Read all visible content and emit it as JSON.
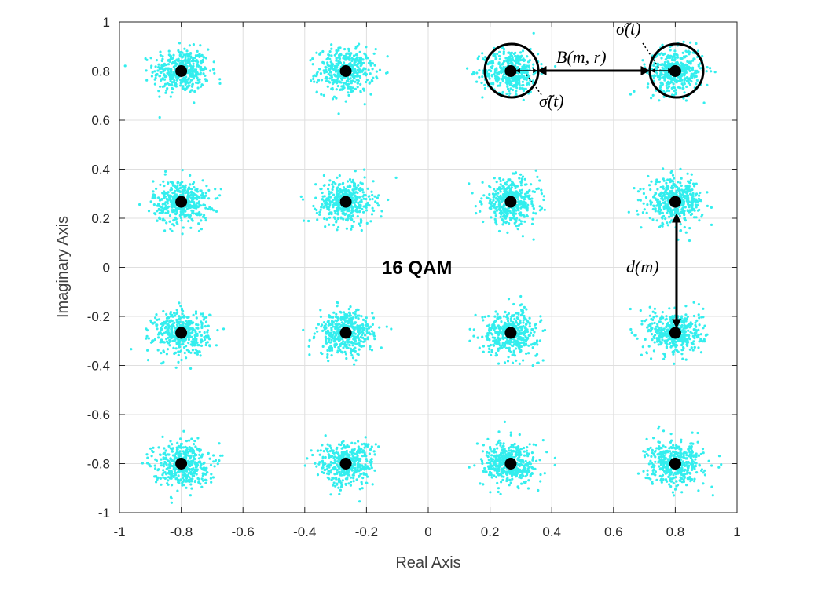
{
  "chart_data": {
    "type": "scatter",
    "title": "16 QAM",
    "xlabel": "Real Axis",
    "ylabel": "Imaginary Axis",
    "xlim": [
      -1,
      1
    ],
    "ylim": [
      -1,
      1
    ],
    "xticks": [
      "-1",
      "-0.8",
      "-0.6",
      "-0.4",
      "-0.2",
      "0",
      "0.2",
      "0.4",
      "0.6",
      "0.8",
      "1"
    ],
    "yticks": [
      "1",
      "0.8",
      "0.6",
      "0.4",
      "0.2",
      "0",
      "-0.2",
      "-0.4",
      "-0.6",
      "-0.8",
      "-1"
    ],
    "grid": true,
    "constellation_points": [
      {
        "x": -0.8,
        "y": 0.8
      },
      {
        "x": -0.267,
        "y": 0.8
      },
      {
        "x": 0.267,
        "y": 0.8
      },
      {
        "x": 0.8,
        "y": 0.8
      },
      {
        "x": -0.8,
        "y": 0.267
      },
      {
        "x": -0.267,
        "y": 0.267
      },
      {
        "x": 0.267,
        "y": 0.267
      },
      {
        "x": 0.8,
        "y": 0.267
      },
      {
        "x": -0.8,
        "y": -0.267
      },
      {
        "x": -0.267,
        "y": -0.267
      },
      {
        "x": 0.267,
        "y": -0.267
      },
      {
        "x": 0.8,
        "y": -0.267
      },
      {
        "x": -0.8,
        "y": -0.8
      },
      {
        "x": -0.267,
        "y": -0.8
      },
      {
        "x": 0.267,
        "y": -0.8
      },
      {
        "x": 0.8,
        "y": -0.8
      }
    ],
    "noise_color": "#33eeee",
    "point_color": "#000000",
    "annotations": {
      "sigma_top": "σ̃(t)",
      "sigma_bottom": "σ̃(t)",
      "distance_b": "B(m, r)",
      "distance_d": "d(m)"
    }
  }
}
